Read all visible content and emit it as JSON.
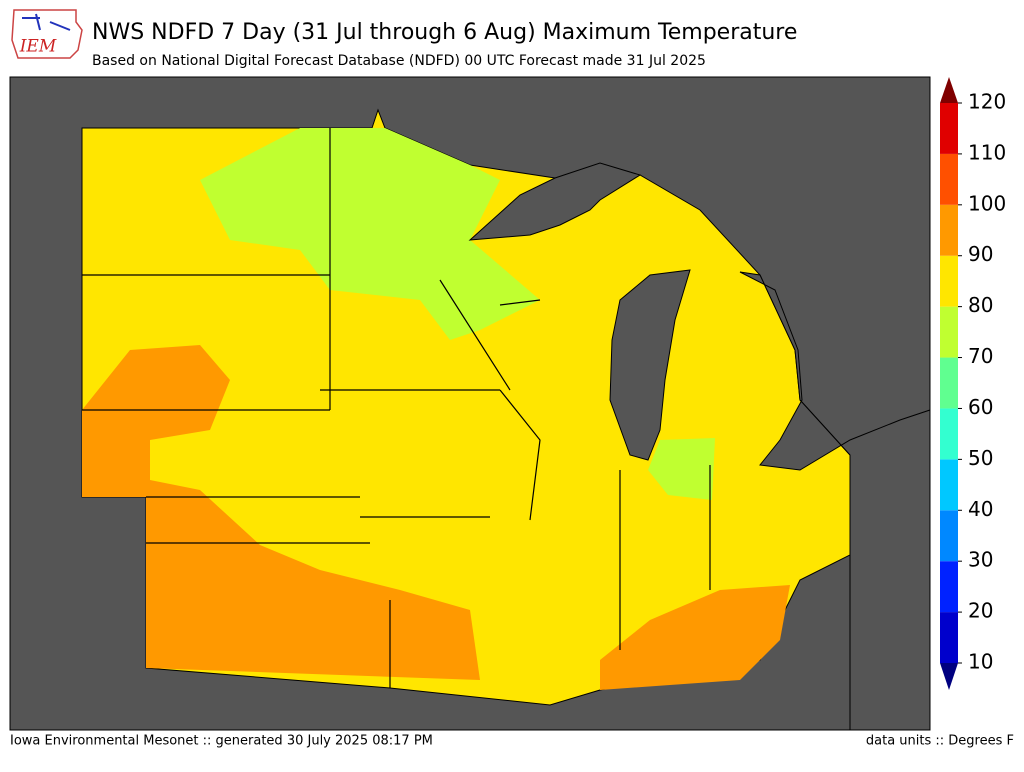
{
  "header": {
    "logo": "IEM",
    "title": "NWS NDFD 7 Day (31 Jul through 6 Aug) Maximum Temperature",
    "subtitle": "Based on National Digital Forecast Database (NDFD) 00 UTC Forecast made 31 Jul 2025"
  },
  "colorbar": {
    "ticks": [
      10,
      20,
      30,
      40,
      50,
      60,
      70,
      80,
      90,
      100,
      110,
      120
    ],
    "colors": [
      "#0000cc",
      "#0022ff",
      "#0088ff",
      "#00c8ff",
      "#33ffd0",
      "#60ff90",
      "#c0ff30",
      "#ffe600",
      "#ff9900",
      "#ff5000",
      "#e00000"
    ],
    "under_color": "#000080",
    "over_color": "#800000"
  },
  "footer": {
    "left": "Iowa Environmental Mesonet :: generated 30 July 2025 08:17 PM",
    "right": "data units :: Degrees F"
  }
}
